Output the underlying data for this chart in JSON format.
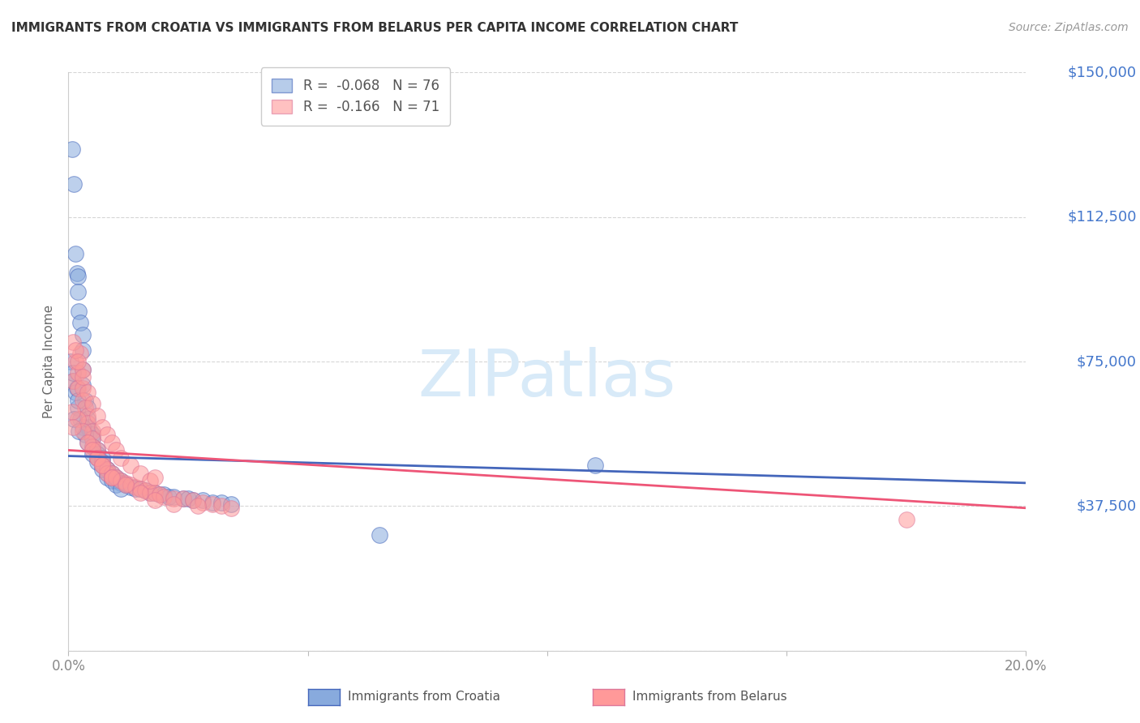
{
  "title": "IMMIGRANTS FROM CROATIA VS IMMIGRANTS FROM BELARUS PER CAPITA INCOME CORRELATION CHART",
  "source": "Source: ZipAtlas.com",
  "ylabel": "Per Capita Income",
  "yticks": [
    0,
    37500,
    75000,
    112500,
    150000
  ],
  "ytick_labels": [
    "",
    "$37,500",
    "$75,000",
    "$112,500",
    "$150,000"
  ],
  "xlim": [
    0.0,
    0.2
  ],
  "ylim": [
    0,
    150000
  ],
  "color_croatia": "#88AADD",
  "color_belarus": "#FF9999",
  "color_line_croatia": "#4466BB",
  "color_line_belarus": "#EE5577",
  "color_yticks": "#4477CC",
  "watermark_text": "ZIPatlas",
  "croatia_R": -0.068,
  "croatia_N": 76,
  "belarus_R": -0.166,
  "belarus_N": 71,
  "croatia_x": [
    0.0008,
    0.0012,
    0.0015,
    0.0018,
    0.002,
    0.002,
    0.0022,
    0.0025,
    0.003,
    0.003,
    0.003,
    0.003,
    0.0035,
    0.004,
    0.004,
    0.004,
    0.0045,
    0.005,
    0.005,
    0.005,
    0.006,
    0.006,
    0.006,
    0.007,
    0.007,
    0.007,
    0.008,
    0.008,
    0.008,
    0.009,
    0.009,
    0.01,
    0.01,
    0.011,
    0.011,
    0.012,
    0.012,
    0.013,
    0.014,
    0.015,
    0.016,
    0.017,
    0.018,
    0.019,
    0.02,
    0.021,
    0.022,
    0.024,
    0.025,
    0.026,
    0.028,
    0.03,
    0.032,
    0.034,
    0.001,
    0.0015,
    0.002,
    0.0025,
    0.003,
    0.0035,
    0.004,
    0.005,
    0.006,
    0.007,
    0.008,
    0.009,
    0.01,
    0.011,
    0.0005,
    0.001,
    0.0018,
    0.002,
    0.0012,
    0.0022,
    0.11,
    0.065
  ],
  "croatia_y": [
    130000,
    121000,
    103000,
    98000,
    97000,
    93000,
    88000,
    85000,
    82000,
    78000,
    73000,
    69000,
    65000,
    63000,
    60000,
    58000,
    57000,
    56000,
    55000,
    53000,
    52000,
    51000,
    50000,
    50000,
    49000,
    48000,
    47000,
    47000,
    46000,
    46000,
    45000,
    45000,
    44000,
    44000,
    43500,
    43000,
    43000,
    42500,
    42000,
    42000,
    41500,
    41000,
    41000,
    40500,
    40500,
    40000,
    40000,
    39500,
    39500,
    39000,
    39000,
    38500,
    38500,
    38000,
    70000,
    67000,
    63000,
    60000,
    58000,
    56000,
    54000,
    51000,
    49000,
    47000,
    45000,
    44000,
    43000,
    42000,
    75000,
    72000,
    68000,
    65000,
    60000,
    57000,
    48000,
    30000
  ],
  "belarus_x": [
    0.001,
    0.0015,
    0.002,
    0.002,
    0.0025,
    0.003,
    0.003,
    0.003,
    0.0035,
    0.004,
    0.004,
    0.005,
    0.005,
    0.005,
    0.006,
    0.006,
    0.007,
    0.007,
    0.008,
    0.008,
    0.009,
    0.009,
    0.01,
    0.011,
    0.012,
    0.013,
    0.014,
    0.015,
    0.016,
    0.017,
    0.018,
    0.019,
    0.02,
    0.022,
    0.024,
    0.026,
    0.028,
    0.03,
    0.032,
    0.034,
    0.001,
    0.0015,
    0.002,
    0.003,
    0.004,
    0.005,
    0.006,
    0.007,
    0.008,
    0.009,
    0.01,
    0.011,
    0.013,
    0.015,
    0.017,
    0.002,
    0.003,
    0.004,
    0.005,
    0.006,
    0.007,
    0.009,
    0.012,
    0.015,
    0.018,
    0.022,
    0.027,
    0.018,
    0.175,
    0.0008,
    0.001
  ],
  "belarus_y": [
    70000,
    75000,
    72000,
    68000,
    77000,
    73000,
    68000,
    65000,
    63000,
    61000,
    59000,
    57000,
    55000,
    53000,
    52000,
    50000,
    49000,
    48000,
    47000,
    46000,
    46000,
    45000,
    45000,
    44000,
    43500,
    43000,
    42500,
    42000,
    41500,
    41000,
    41000,
    40500,
    40000,
    39500,
    39500,
    39000,
    38500,
    38000,
    37500,
    37000,
    80000,
    78000,
    75000,
    71000,
    67000,
    64000,
    61000,
    58000,
    56000,
    54000,
    52000,
    50000,
    48000,
    46000,
    44000,
    60000,
    57000,
    54000,
    52000,
    50000,
    48000,
    45000,
    43000,
    41000,
    39000,
    38000,
    37500,
    45000,
    34000,
    62000,
    58000
  ]
}
